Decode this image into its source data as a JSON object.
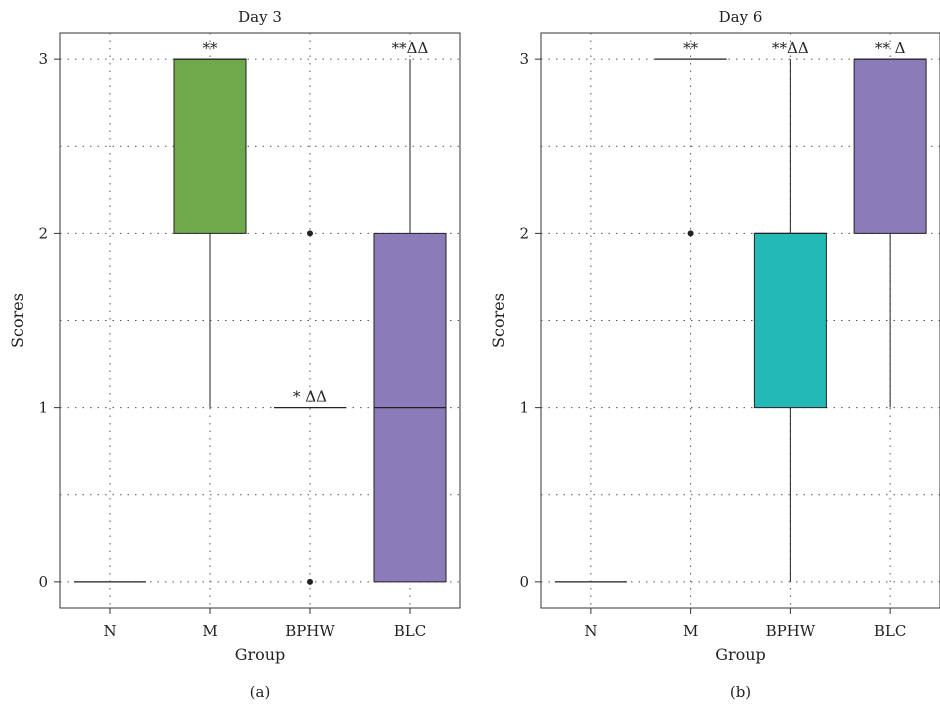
{
  "chart_data": [
    {
      "type": "box",
      "panel_label": "(a)",
      "title": "Day 3",
      "xlabel": "Group",
      "ylabel": "Scores",
      "categories": [
        "N",
        "M",
        "BPHW",
        "BLC"
      ],
      "ylim": [
        -0.15,
        3.15
      ],
      "yticks": [
        0,
        1,
        2,
        3
      ],
      "grid": true,
      "colors": [
        "#ffffff",
        "#70a84c",
        "#ffffff",
        "#8b7bb8"
      ],
      "boxes": [
        {
          "category": "N",
          "min": 0,
          "q1": 0,
          "median": 0,
          "q3": 0,
          "max": 0,
          "outliers": [],
          "annotation": ""
        },
        {
          "category": "M",
          "min": 1,
          "q1": 2,
          "median": 3,
          "q3": 3,
          "max": 3,
          "outliers": [],
          "annotation": "**"
        },
        {
          "category": "BPHW",
          "min": 1,
          "q1": 1,
          "median": 1,
          "q3": 1,
          "max": 1,
          "outliers": [
            0,
            2
          ],
          "annotation": "* ΔΔ"
        },
        {
          "category": "BLC",
          "min": 0,
          "q1": 0,
          "median": 1,
          "q3": 2,
          "max": 3,
          "outliers": [],
          "annotation": "**ΔΔ"
        }
      ]
    },
    {
      "type": "box",
      "panel_label": "(b)",
      "title": "Day 6",
      "xlabel": "Group",
      "ylabel": "Scores",
      "categories": [
        "N",
        "M",
        "BPHW",
        "BLC"
      ],
      "ylim": [
        -0.15,
        3.15
      ],
      "yticks": [
        0,
        1,
        2,
        3
      ],
      "grid": true,
      "colors": [
        "#ffffff",
        "#ffffff",
        "#22b9b6",
        "#8b7bb8"
      ],
      "boxes": [
        {
          "category": "N",
          "min": 0,
          "q1": 0,
          "median": 0,
          "q3": 0,
          "max": 0,
          "outliers": [],
          "annotation": ""
        },
        {
          "category": "M",
          "min": 3,
          "q1": 3,
          "median": 3,
          "q3": 3,
          "max": 3,
          "outliers": [
            2
          ],
          "annotation": "**"
        },
        {
          "category": "BPHW",
          "min": 0,
          "q1": 1,
          "median": 2,
          "q3": 2,
          "max": 3,
          "outliers": [],
          "annotation": "**ΔΔ"
        },
        {
          "category": "BLC",
          "min": 1,
          "q1": 2,
          "median": 3,
          "q3": 3,
          "max": 3,
          "outliers": [],
          "annotation": "** Δ"
        }
      ]
    }
  ]
}
